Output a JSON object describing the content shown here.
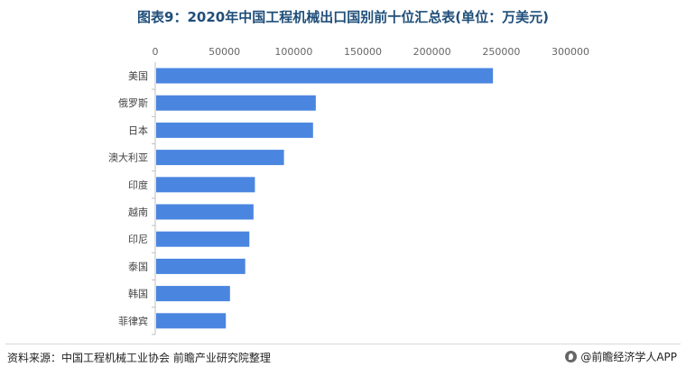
{
  "title": "图表9：2020年中国工程机械出口国别前十位汇总表(单位：万美元)",
  "chart_data": {
    "type": "bar",
    "orientation": "horizontal",
    "categories": [
      "美国",
      "俄罗斯",
      "日本",
      "澳大利亚",
      "印度",
      "越南",
      "印尼",
      "泰国",
      "韩国",
      "菲律宾"
    ],
    "values": [
      244000,
      116000,
      114000,
      93000,
      72000,
      71000,
      68000,
      65000,
      54000,
      51000
    ],
    "xlim": [
      0,
      300000
    ],
    "xticks": [
      0,
      50000,
      100000,
      150000,
      200000,
      250000,
      300000
    ],
    "xtick_labels": [
      "0",
      "50000",
      "100000",
      "150000",
      "200000",
      "250000",
      "300000"
    ],
    "axis_position": "top",
    "grid": false,
    "bar_color": "#4a86e0"
  },
  "footer": {
    "source": "资料来源：中国工程机械工业协会 前瞻产业研究院整理",
    "brand": "@前瞻经济学人APP"
  }
}
